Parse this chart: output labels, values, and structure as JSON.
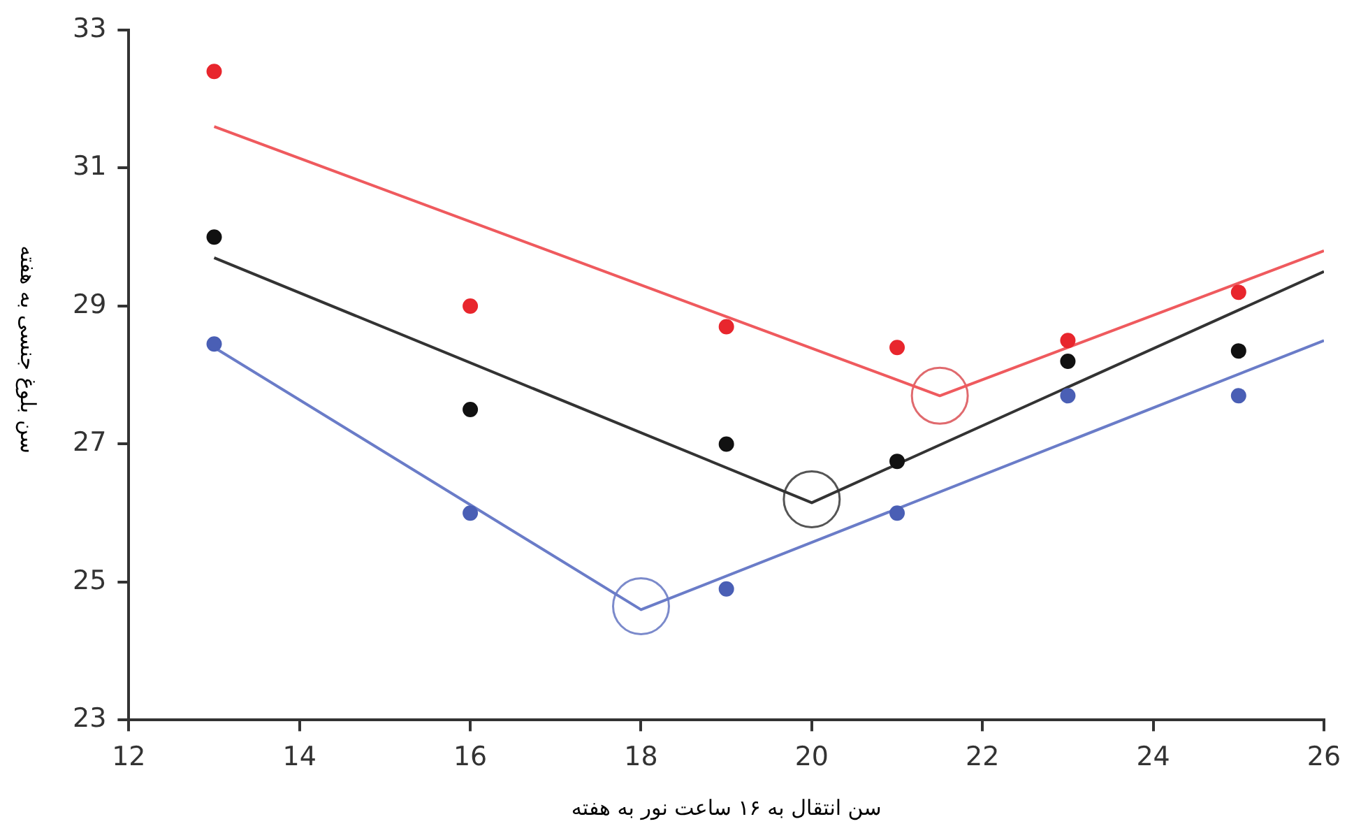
{
  "chart_data": {
    "type": "scatter",
    "xlabel": "سن انتقال به ۱۶ ساعت نور به هفته",
    "ylabel": "سن بلوغ جنسی به هفته",
    "xlim": [
      12,
      26
    ],
    "xticks": [
      12,
      14,
      16,
      18,
      20,
      22,
      24,
      26
    ],
    "ylim": [
      23,
      33
    ],
    "yticks": [
      23,
      25,
      27,
      29,
      31,
      33
    ],
    "grid": false,
    "legend": false,
    "marker": "circle",
    "series": [
      {
        "color": "#e8262d",
        "x": [
          13,
          16,
          19,
          21,
          23,
          25
        ],
        "values": [
          32.4,
          29.0,
          28.7,
          28.4,
          28.5,
          29.2
        ]
      },
      {
        "color": "#111111",
        "x": [
          13,
          16,
          19,
          21,
          23,
          25
        ],
        "values": [
          30.0,
          27.5,
          27.0,
          26.75,
          28.2,
          28.35
        ]
      },
      {
        "color": "#4a5fb5",
        "x": [
          13,
          16,
          19,
          21,
          23,
          25
        ],
        "values": [
          28.45,
          26.0,
          24.9,
          26.0,
          27.7,
          27.7
        ]
      },
      {
        "type": "line",
        "marker": "none",
        "color": "#ef5a5e",
        "x": [
          13,
          21.5,
          26
        ],
        "values": [
          31.6,
          27.7,
          29.8
        ]
      },
      {
        "type": "line",
        "marker": "none",
        "color": "#333333",
        "x": [
          13,
          20,
          26
        ],
        "values": [
          29.7,
          26.15,
          29.5
        ]
      },
      {
        "type": "line",
        "marker": "none",
        "color": "#6a7cc8",
        "x": [
          13,
          18,
          26
        ],
        "values": [
          28.4,
          24.6,
          28.5
        ]
      },
      {
        "type": "bubble",
        "color": "#e06a6e",
        "x": [
          21.5
        ],
        "values": [
          27.7
        ],
        "sizes": [
          1
        ]
      },
      {
        "type": "bubble",
        "color": "#555555",
        "x": [
          20
        ],
        "values": [
          26.2
        ],
        "sizes": [
          1
        ]
      },
      {
        "type": "bubble",
        "color": "#7b8acb",
        "x": [
          18
        ],
        "values": [
          24.65
        ],
        "sizes": [
          1
        ]
      }
    ]
  }
}
